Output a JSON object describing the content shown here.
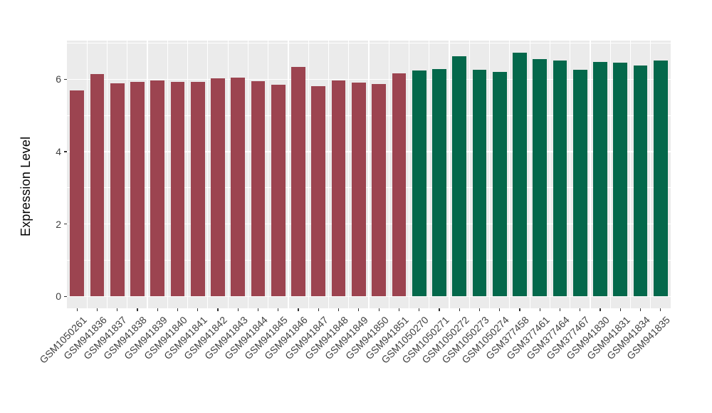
{
  "chart_data": {
    "type": "bar",
    "title": "",
    "xlabel": "",
    "ylabel": "Expression Level",
    "ylim": [
      0,
      7.07
    ],
    "ytick_values": [
      0,
      2,
      4,
      6
    ],
    "ytick_labels": [
      "0",
      "2",
      "4",
      "6"
    ],
    "yminor_values": [
      1,
      3,
      5,
      7
    ],
    "grid": "on",
    "legend_position": "none",
    "panel_background": "#EBEBEB",
    "grid_color": "#FFFFFF",
    "axis_text_color": "#404040",
    "group_colors": [
      "#9C4450",
      "#04684B"
    ],
    "categories": [
      "GSM1050261",
      "GSM941836",
      "GSM941837",
      "GSM941838",
      "GSM941839",
      "GSM941840",
      "GSM941841",
      "GSM941842",
      "GSM941843",
      "GSM941844",
      "GSM941845",
      "GSM941846",
      "GSM941847",
      "GSM941848",
      "GSM941849",
      "GSM941850",
      "GSM941851",
      "GSM1050270",
      "GSM1050271",
      "GSM1050272",
      "GSM1050273",
      "GSM1050274",
      "GSM377458",
      "GSM377461",
      "GSM377464",
      "GSM377467",
      "GSM941830",
      "GSM941831",
      "GSM941834",
      "GSM941835"
    ],
    "values": [
      5.69,
      6.15,
      5.89,
      5.93,
      5.97,
      5.93,
      5.93,
      6.02,
      6.05,
      5.95,
      5.84,
      6.35,
      5.8,
      5.97,
      5.91,
      5.87,
      6.16,
      6.25,
      6.29,
      6.64,
      6.27,
      6.2,
      6.73,
      6.55,
      6.51,
      6.26,
      6.47,
      6.46,
      6.37,
      6.52
    ],
    "bar_groups": [
      0,
      0,
      0,
      0,
      0,
      0,
      0,
      0,
      0,
      0,
      0,
      0,
      0,
      0,
      0,
      0,
      0,
      1,
      1,
      1,
      1,
      1,
      1,
      1,
      1,
      1,
      1,
      1,
      1,
      1
    ]
  }
}
